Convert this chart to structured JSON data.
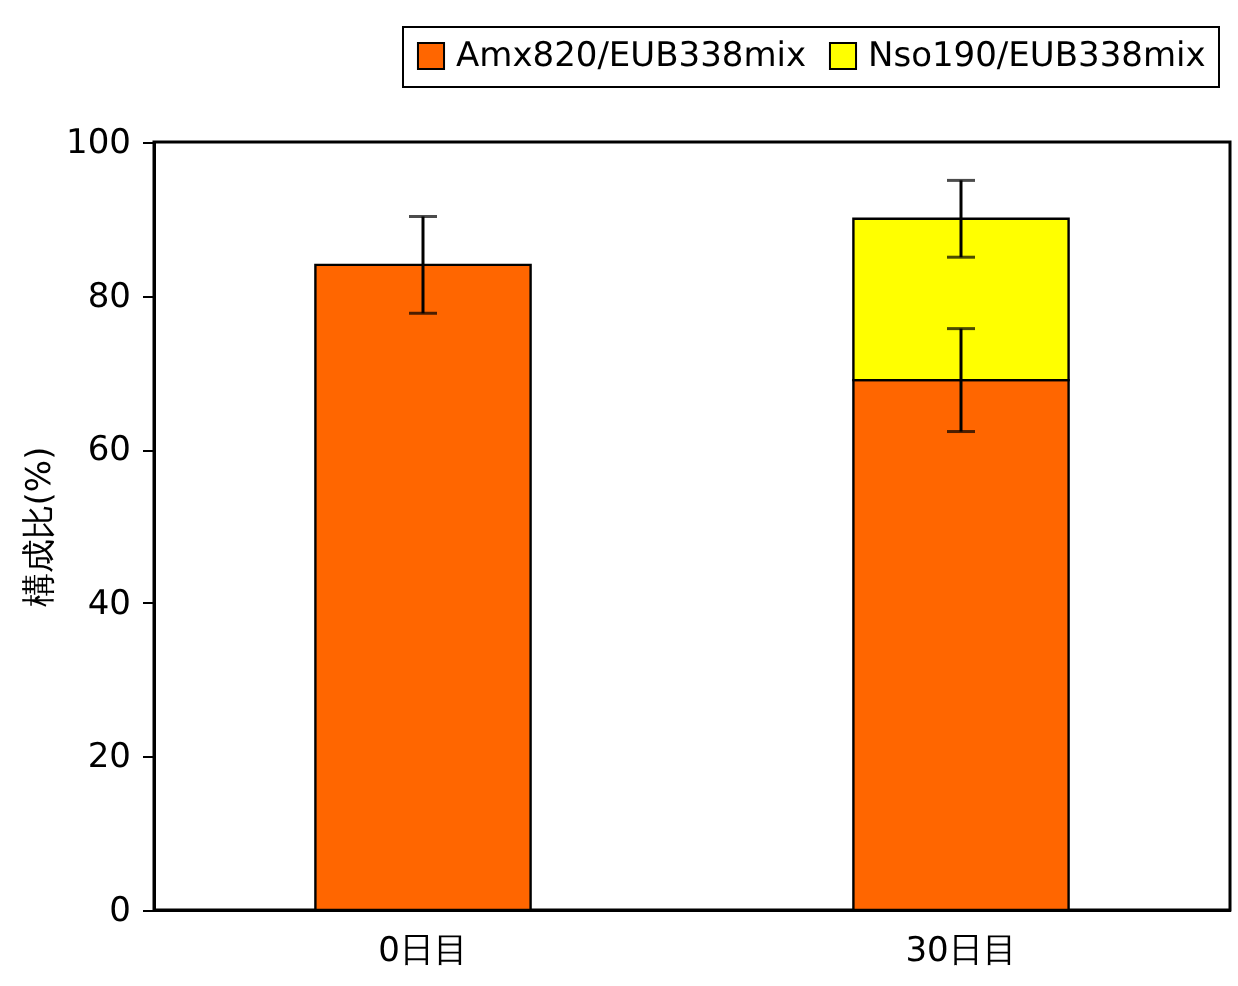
{
  "chart_data": {
    "type": "bar",
    "stacked": true,
    "ylabel": "構成比(%)",
    "categories": [
      "0日目",
      "30日目"
    ],
    "series": [
      {
        "name": "Amx820/EUB338mix",
        "color": "#ff6600",
        "values": [
          84,
          69
        ],
        "errors": [
          6.3,
          6.7
        ]
      },
      {
        "name": "Nso190/EUB338mix",
        "color": "#ffff00",
        "values": [
          null,
          21
        ],
        "errors": [
          null,
          5
        ]
      }
    ],
    "ylim": [
      0,
      100
    ],
    "yticks": [
      0,
      20,
      40,
      60,
      80,
      100
    ],
    "grid": false,
    "legend": "top right"
  }
}
